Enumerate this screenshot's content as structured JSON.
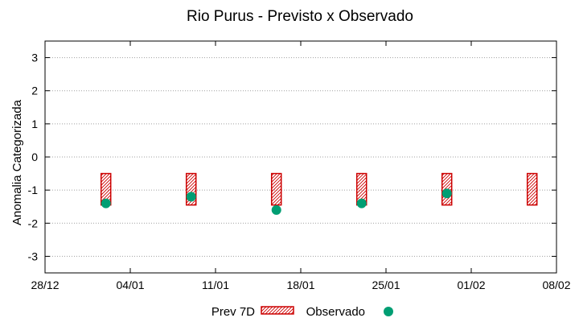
{
  "chart_data": {
    "type": "bar",
    "title": "Rio Purus - Previsto x Observado",
    "xlabel": "",
    "ylabel": "Anomalia Categorizada",
    "ylim": [
      -3.5,
      3.5
    ],
    "yticks": [
      3,
      2,
      1,
      0,
      -1,
      -2,
      -3
    ],
    "ytick_labels": [
      "3",
      "2",
      "1",
      "0",
      "-1",
      "-2",
      "-3"
    ],
    "x_ticks": [
      {
        "label": "28/12",
        "day": 0
      },
      {
        "label": "04/01",
        "day": 7
      },
      {
        "label": "11/01",
        "day": 14
      },
      {
        "label": "18/01",
        "day": 21
      },
      {
        "label": "25/01",
        "day": 28
      },
      {
        "label": "01/02",
        "day": 35
      },
      {
        "label": "08/02",
        "day": 42
      }
    ],
    "xlim_days": [
      0,
      42
    ],
    "series": [
      {
        "name": "Prev 7D",
        "kind": "floating-bar",
        "color": "#cc0000",
        "points": [
          {
            "day": 5,
            "low": -1.45,
            "high": -0.5
          },
          {
            "day": 12,
            "low": -1.45,
            "high": -0.5
          },
          {
            "day": 19,
            "low": -1.45,
            "high": -0.5
          },
          {
            "day": 26,
            "low": -1.45,
            "high": -0.5
          },
          {
            "day": 33,
            "low": -1.45,
            "high": -0.5
          },
          {
            "day": 40,
            "low": -1.45,
            "high": -0.5
          }
        ]
      },
      {
        "name": "Observado",
        "kind": "point",
        "color": "#009e73",
        "points": [
          {
            "day": 5,
            "value": -1.4
          },
          {
            "day": 12,
            "value": -1.2
          },
          {
            "day": 19,
            "value": -1.6
          },
          {
            "day": 26,
            "value": -1.4
          },
          {
            "day": 33,
            "value": -1.1
          }
        ]
      }
    ],
    "legend": {
      "placement": "bottom-center"
    }
  }
}
